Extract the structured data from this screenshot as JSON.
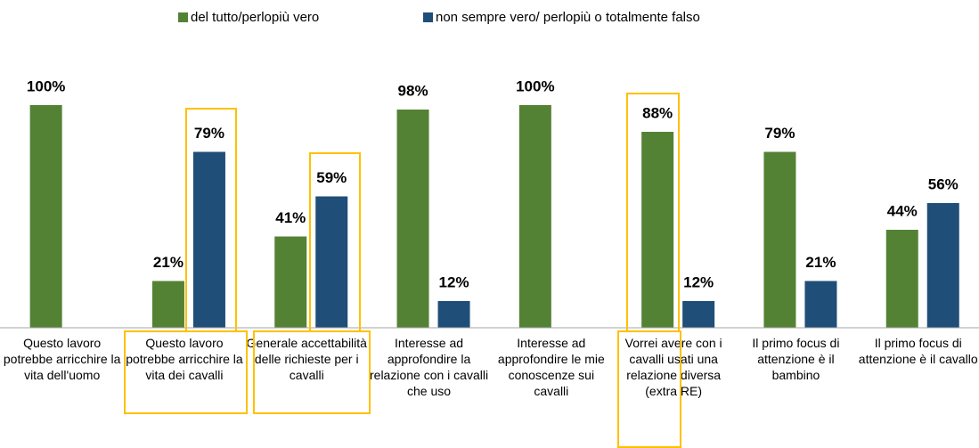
{
  "chart_data": {
    "type": "bar",
    "categories": [
      "Questo lavoro potrebbe arricchire la vita dell'uomo",
      "Questo lavoro potrebbe arricchire la vita dei cavalli",
      "Generale accettabilità delle richieste per i cavalli",
      "Interesse ad approfondire la relazione con i cavalli che uso",
      "Interesse ad approfondire le mie conoscenze sui cavalli",
      "Vorrei avere con i cavalli usati una relazione diversa (extra RE)",
      "Il primo focus di attenzione è il bambino",
      "Il primo focus di attenzione è il cavallo"
    ],
    "series": [
      {
        "name": "del tutto/perlopiù vero",
        "color": "#548235",
        "values": [
          100,
          21,
          41,
          98,
          100,
          88,
          79,
          44
        ],
        "value_labels": [
          "100%",
          "21%",
          "41%",
          "98%",
          "100%",
          "88%",
          "79%",
          "44%"
        ]
      },
      {
        "name": "non sempre vero/ perlopiù o totalmente falso",
        "color": "#1f4e79",
        "values": [
          null,
          79,
          59,
          12,
          null,
          12,
          21,
          56
        ],
        "value_labels": [
          null,
          "79%",
          "59%",
          "12%",
          null,
          "12%",
          "21%",
          "56%"
        ]
      }
    ],
    "ylim": [
      0,
      100
    ]
  }
}
